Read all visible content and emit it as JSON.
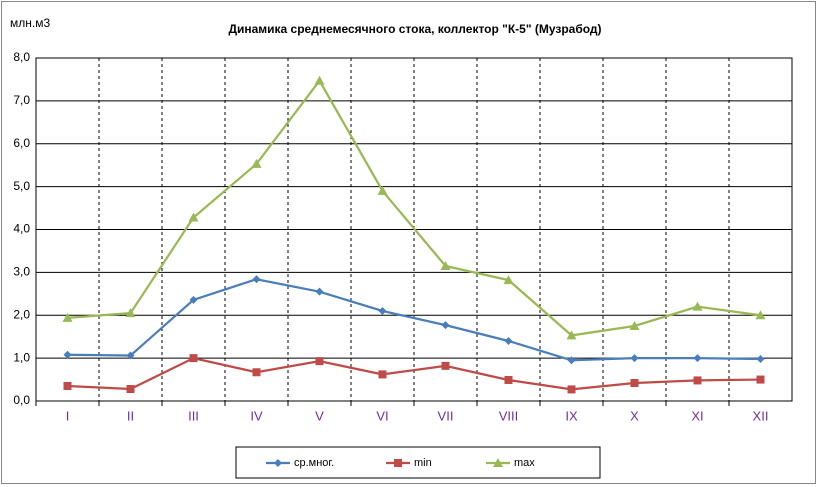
{
  "chart_data": {
    "type": "line",
    "title": "Динамика среднемесячного стока, коллектор \"К-5\" (Музрабод)",
    "y_label": "млн.м3",
    "categories": [
      "I",
      "II",
      "III",
      "IV",
      "V",
      "VI",
      "VII",
      "VIII",
      "IX",
      "X",
      "XI",
      "XII"
    ],
    "series": [
      {
        "name": "ср.мног.",
        "color": "#4a7ebb",
        "marker": "diamond",
        "values": [
          1.08,
          1.06,
          2.36,
          2.84,
          2.55,
          2.1,
          1.77,
          1.4,
          0.95,
          1.0,
          1.0,
          0.98
        ]
      },
      {
        "name": "min",
        "color": "#be4b48",
        "marker": "square",
        "values": [
          0.35,
          0.28,
          1.0,
          0.67,
          0.93,
          0.62,
          0.82,
          0.49,
          0.27,
          0.42,
          0.48,
          0.5
        ]
      },
      {
        "name": "max",
        "color": "#98b954",
        "marker": "triangle",
        "values": [
          1.94,
          2.05,
          4.28,
          5.53,
          7.47,
          4.9,
          3.15,
          2.82,
          1.53,
          1.75,
          2.2,
          2.0
        ]
      }
    ],
    "ylim": [
      0,
      8
    ],
    "yticks": [
      {
        "value": 0,
        "label": "0,0"
      },
      {
        "value": 1,
        "label": "1,0"
      },
      {
        "value": 2,
        "label": "2,0"
      },
      {
        "value": 3,
        "label": "3,0"
      },
      {
        "value": 4,
        "label": "4,0"
      },
      {
        "value": 5,
        "label": "5,0"
      },
      {
        "value": 6,
        "label": "6,0"
      },
      {
        "value": 7,
        "label": "7,0"
      },
      {
        "value": 8,
        "label": "8,0"
      }
    ],
    "grid": true,
    "legend": "bottom"
  }
}
